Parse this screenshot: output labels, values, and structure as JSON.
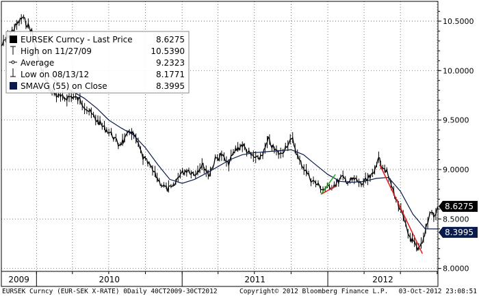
{
  "chart_data": {
    "type": "line",
    "title": "EURSEK Curncy - Last Price",
    "x_range": [
      "2009-10-05",
      "2012-10-03"
    ],
    "ylim": [
      7.97,
      10.7
    ],
    "y_ticks": [
      "10.5000",
      "10.0000",
      "9.5000",
      "9.0000",
      "8.5000",
      "8.0000"
    ],
    "y_tick_values": [
      10.5,
      10.0,
      9.5,
      9.0,
      8.5,
      8.0
    ],
    "x_years": [
      "2009",
      "2010",
      "2011",
      "2012"
    ],
    "grid": true,
    "legend_position": "top-left",
    "legend": [
      {
        "label": "EURSEK Curncy - Last Price",
        "value": "8.6275"
      },
      {
        "label": "High on 11/27/09",
        "value": "10.5390"
      },
      {
        "label": "Average",
        "value": "9.2323"
      },
      {
        "label": "Low on 08/13/12",
        "value": "8.1771"
      },
      {
        "label": "SMAVG (55) on Close",
        "value": "8.3995"
      }
    ],
    "last_price_tag": "8.6275",
    "smavg_tag": "8.3995",
    "series": [
      {
        "name": "EURSEK Curncy - Last Price",
        "color": "#000000",
        "points": [
          [
            "2009-10-05",
            10.25
          ],
          [
            "2009-11-01",
            10.4
          ],
          [
            "2009-11-27",
            10.539
          ],
          [
            "2009-12-20",
            10.4
          ],
          [
            "2010-01-10",
            10.05
          ],
          [
            "2010-02-01",
            9.82
          ],
          [
            "2010-02-20",
            9.75
          ],
          [
            "2010-03-10",
            9.72
          ],
          [
            "2010-04-01",
            9.74
          ],
          [
            "2010-04-20",
            9.7
          ],
          [
            "2010-05-10",
            9.6
          ],
          [
            "2010-06-01",
            9.5
          ],
          [
            "2010-06-20",
            9.42
          ],
          [
            "2010-07-10",
            9.35
          ],
          [
            "2010-07-25",
            9.25
          ],
          [
            "2010-08-10",
            9.3
          ],
          [
            "2010-08-25",
            9.4
          ],
          [
            "2010-09-10",
            9.28
          ],
          [
            "2010-09-25",
            9.12
          ],
          [
            "2010-10-10",
            9.05
          ],
          [
            "2010-10-25",
            8.95
          ],
          [
            "2010-11-10",
            8.85
          ],
          [
            "2010-11-25",
            8.8
          ],
          [
            "2010-12-10",
            8.82
          ],
          [
            "2010-12-25",
            8.95
          ],
          [
            "2011-01-15",
            9.0
          ],
          [
            "2011-02-01",
            8.95
          ],
          [
            "2011-02-20",
            9.05
          ],
          [
            "2011-03-10",
            8.95
          ],
          [
            "2011-03-25",
            9.1
          ],
          [
            "2011-04-10",
            9.15
          ],
          [
            "2011-04-25",
            9.05
          ],
          [
            "2011-05-15",
            9.2
          ],
          [
            "2011-06-01",
            9.25
          ],
          [
            "2011-06-20",
            9.15
          ],
          [
            "2011-07-10",
            9.1
          ],
          [
            "2011-07-25",
            9.18
          ],
          [
            "2011-08-05",
            9.3
          ],
          [
            "2011-08-20",
            9.2
          ],
          [
            "2011-09-05",
            9.15
          ],
          [
            "2011-09-20",
            9.25
          ],
          [
            "2011-10-05",
            9.3
          ],
          [
            "2011-10-20",
            9.1
          ],
          [
            "2011-11-05",
            9.0
          ],
          [
            "2011-11-20",
            8.9
          ],
          [
            "2011-12-05",
            8.85
          ],
          [
            "2011-12-20",
            8.8
          ],
          [
            "2012-01-05",
            8.82
          ],
          [
            "2012-01-20",
            8.85
          ],
          [
            "2012-02-05",
            8.92
          ],
          [
            "2012-02-20",
            8.88
          ],
          [
            "2012-03-10",
            8.9
          ],
          [
            "2012-03-25",
            8.85
          ],
          [
            "2012-04-10",
            8.9
          ],
          [
            "2012-04-25",
            8.95
          ],
          [
            "2012-05-05",
            9.12
          ],
          [
            "2012-05-15",
            9.05
          ],
          [
            "2012-05-25",
            9.0
          ],
          [
            "2012-06-05",
            8.88
          ],
          [
            "2012-06-20",
            8.7
          ],
          [
            "2012-07-05",
            8.55
          ],
          [
            "2012-07-20",
            8.35
          ],
          [
            "2012-08-05",
            8.25
          ],
          [
            "2012-08-13",
            8.1771
          ],
          [
            "2012-08-25",
            8.25
          ],
          [
            "2012-09-05",
            8.45
          ],
          [
            "2012-09-15",
            8.58
          ],
          [
            "2012-09-25",
            8.52
          ],
          [
            "2012-10-03",
            8.6275
          ]
        ]
      },
      {
        "name": "SMAVG (55) on Close",
        "color": "#0a1a4a",
        "points": [
          [
            "2010-02-01",
            9.95
          ],
          [
            "2010-03-01",
            9.86
          ],
          [
            "2010-04-01",
            9.79
          ],
          [
            "2010-05-01",
            9.72
          ],
          [
            "2010-06-01",
            9.62
          ],
          [
            "2010-07-01",
            9.5
          ],
          [
            "2010-08-01",
            9.42
          ],
          [
            "2010-09-01",
            9.35
          ],
          [
            "2010-10-01",
            9.22
          ],
          [
            "2010-11-01",
            9.05
          ],
          [
            "2010-12-01",
            8.9
          ],
          [
            "2011-01-01",
            8.86
          ],
          [
            "2011-02-01",
            8.9
          ],
          [
            "2011-03-01",
            8.96
          ],
          [
            "2011-04-01",
            9.03
          ],
          [
            "2011-05-01",
            9.1
          ],
          [
            "2011-06-01",
            9.15
          ],
          [
            "2011-07-01",
            9.17
          ],
          [
            "2011-08-01",
            9.18
          ],
          [
            "2011-09-01",
            9.19
          ],
          [
            "2011-10-01",
            9.2
          ],
          [
            "2011-11-01",
            9.15
          ],
          [
            "2011-12-01",
            9.05
          ],
          [
            "2012-01-01",
            8.95
          ],
          [
            "2012-02-01",
            8.88
          ],
          [
            "2012-03-01",
            8.87
          ],
          [
            "2012-04-01",
            8.88
          ],
          [
            "2012-05-01",
            8.91
          ],
          [
            "2012-06-01",
            8.92
          ],
          [
            "2012-07-01",
            8.78
          ],
          [
            "2012-08-01",
            8.55
          ],
          [
            "2012-09-01",
            8.4
          ],
          [
            "2012-10-03",
            8.3995
          ]
        ]
      }
    ],
    "trendlines": [
      {
        "color": "#e02020",
        "points": [
          [
            "2011-12-15",
            8.75
          ],
          [
            "2012-01-20",
            8.83
          ]
        ]
      },
      {
        "color": "#22aa22",
        "points": [
          [
            "2011-12-15",
            8.75
          ],
          [
            "2012-01-20",
            8.95
          ]
        ]
      },
      {
        "color": "#e02020",
        "points": [
          [
            "2012-05-10",
            9.05
          ],
          [
            "2012-08-25",
            8.15
          ]
        ]
      }
    ]
  },
  "footer": {
    "left": "EURSEK Curncy (EUR-SEK X-RATE) 0Daily 40CT2009-30CT2012",
    "center": "Copyright© 2012 Bloomberg Finance L.P.",
    "right": "03-Oct-2012 23:08:51"
  }
}
